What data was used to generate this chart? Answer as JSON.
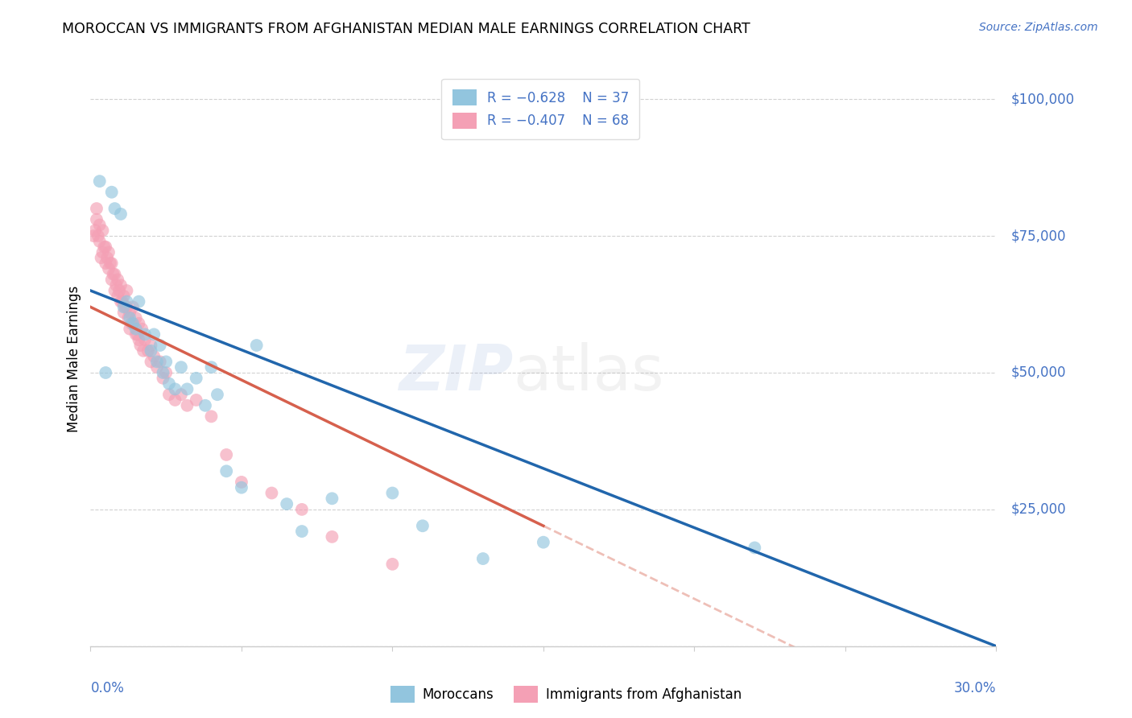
{
  "title": "MOROCCAN VS IMMIGRANTS FROM AFGHANISTAN MEDIAN MALE EARNINGS CORRELATION CHART",
  "source": "Source: ZipAtlas.com",
  "ylabel": "Median Male Earnings",
  "watermark_zip": "ZIP",
  "watermark_atlas": "atlas",
  "blue_color": "#92c5de",
  "pink_color": "#f4a582",
  "blue_line_color": "#2166ac",
  "pink_line_color": "#d6604d",
  "axis_color": "#4472c4",
  "moroccans_label": "Moroccans",
  "afghan_label": "Immigrants from Afghanistan",
  "legend_r1": "R = ",
  "legend_r1_val": "-0.628",
  "legend_n1": "N = 37",
  "legend_r2": "R = ",
  "legend_r2_val": "-0.407",
  "legend_n2": "N = 68",
  "blue_scatter_color": "#92c5de",
  "pink_scatter_color": "#f4a0b5",
  "moroccans_x": [
    0.3,
    0.7,
    0.8,
    1.0,
    1.1,
    1.3,
    1.5,
    1.6,
    1.8,
    2.0,
    2.1,
    2.2,
    2.3,
    2.4,
    2.5,
    2.6,
    2.8,
    3.0,
    3.2,
    3.5,
    3.8,
    4.0,
    4.2,
    4.5,
    5.0,
    5.5,
    6.5,
    7.0,
    8.0,
    10.0,
    11.0,
    13.0,
    15.0,
    22.0,
    0.5,
    1.2,
    1.4
  ],
  "moroccans_y": [
    85000,
    83000,
    80000,
    79000,
    62000,
    60000,
    58000,
    63000,
    57000,
    54000,
    57000,
    52000,
    55000,
    50000,
    52000,
    48000,
    47000,
    51000,
    47000,
    49000,
    44000,
    51000,
    46000,
    32000,
    29000,
    55000,
    26000,
    21000,
    27000,
    28000,
    22000,
    16000,
    19000,
    18000,
    50000,
    63000,
    59000
  ],
  "afghan_x": [
    0.1,
    0.2,
    0.2,
    0.3,
    0.3,
    0.4,
    0.4,
    0.5,
    0.5,
    0.6,
    0.6,
    0.7,
    0.7,
    0.8,
    0.8,
    0.9,
    0.9,
    1.0,
    1.0,
    1.1,
    1.1,
    1.2,
    1.2,
    1.3,
    1.3,
    1.4,
    1.5,
    1.5,
    1.6,
    1.6,
    1.7,
    1.8,
    1.9,
    2.0,
    2.0,
    2.1,
    2.2,
    2.3,
    2.4,
    2.5,
    2.6,
    2.8,
    3.0,
    3.2,
    3.5,
    4.0,
    4.5,
    5.0,
    6.0,
    7.0,
    8.0,
    10.0,
    0.15,
    0.25,
    0.35,
    0.45,
    0.55,
    0.65,
    0.75,
    0.85,
    0.95,
    1.05,
    1.15,
    1.25,
    1.35,
    1.55,
    1.65,
    1.75
  ],
  "afghan_y": [
    75000,
    80000,
    78000,
    77000,
    74000,
    76000,
    72000,
    73000,
    70000,
    72000,
    69000,
    70000,
    67000,
    68000,
    65000,
    67000,
    64000,
    66000,
    63000,
    64000,
    61000,
    62000,
    65000,
    61000,
    58000,
    62000,
    60000,
    57000,
    59000,
    56000,
    58000,
    56000,
    54000,
    55000,
    52000,
    53000,
    51000,
    52000,
    49000,
    50000,
    46000,
    45000,
    46000,
    44000,
    45000,
    42000,
    35000,
    30000,
    28000,
    25000,
    20000,
    15000,
    76000,
    75000,
    71000,
    73000,
    71000,
    70000,
    68000,
    66000,
    65000,
    63000,
    62000,
    60000,
    59000,
    57000,
    55000,
    54000
  ]
}
